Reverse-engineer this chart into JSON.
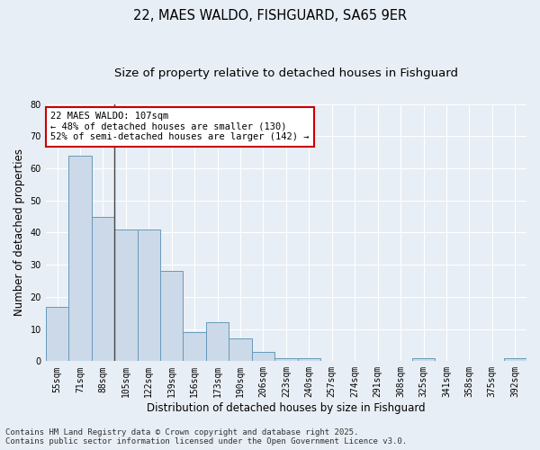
{
  "title1": "22, MAES WALDO, FISHGUARD, SA65 9ER",
  "title2": "Size of property relative to detached houses in Fishguard",
  "xlabel": "Distribution of detached houses by size in Fishguard",
  "ylabel": "Number of detached properties",
  "categories": [
    "55sqm",
    "71sqm",
    "88sqm",
    "105sqm",
    "122sqm",
    "139sqm",
    "156sqm",
    "173sqm",
    "190sqm",
    "206sqm",
    "223sqm",
    "240sqm",
    "257sqm",
    "274sqm",
    "291sqm",
    "308sqm",
    "325sqm",
    "341sqm",
    "358sqm",
    "375sqm",
    "392sqm"
  ],
  "values": [
    17,
    64,
    45,
    41,
    41,
    28,
    9,
    12,
    7,
    3,
    1,
    1,
    0,
    0,
    0,
    0,
    1,
    0,
    0,
    0,
    1
  ],
  "bar_color": "#ccd9e8",
  "bar_edge_color": "#6699bb",
  "highlight_line_color": "#444444",
  "highlight_after_index": 2,
  "ylim": [
    0,
    80
  ],
  "yticks": [
    0,
    10,
    20,
    30,
    40,
    50,
    60,
    70,
    80
  ],
  "annotation_text": "22 MAES WALDO: 107sqm\n← 48% of detached houses are smaller (130)\n52% of semi-detached houses are larger (142) →",
  "annotation_box_facecolor": "#ffffff",
  "annotation_box_edgecolor": "#cc0000",
  "bg_color": "#e8eef5",
  "plot_bg_color": "#e8eef5",
  "footer_line1": "Contains HM Land Registry data © Crown copyright and database right 2025.",
  "footer_line2": "Contains public sector information licensed under the Open Government Licence v3.0.",
  "title_fontsize": 10.5,
  "subtitle_fontsize": 9.5,
  "axis_label_fontsize": 8.5,
  "tick_fontsize": 7,
  "annotation_fontsize": 7.5,
  "footer_fontsize": 6.5,
  "grid_color": "#ffffff",
  "grid_linewidth": 0.8
}
